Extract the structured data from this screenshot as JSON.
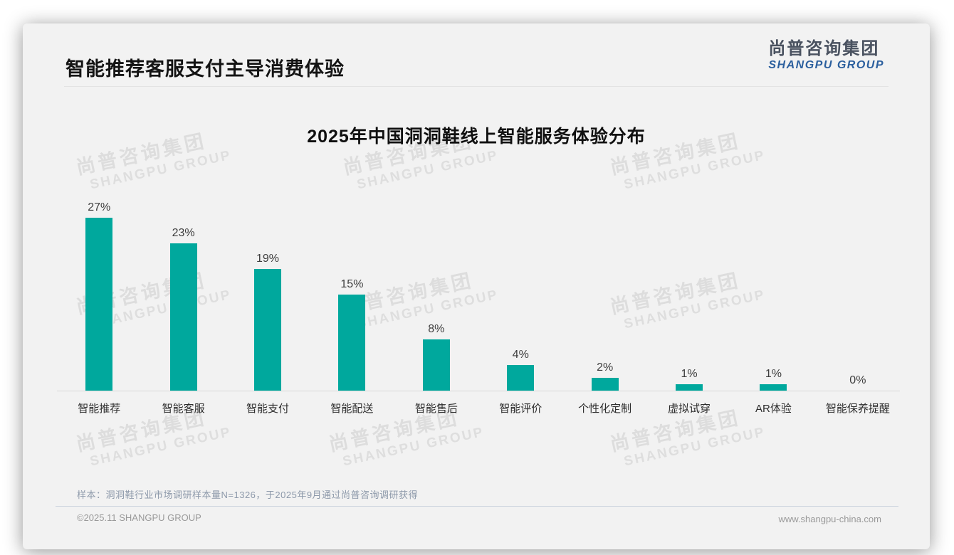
{
  "page": {
    "title": "智能推荐客服支付主导消费体验",
    "logo": {
      "zh": "尚普咨询集团",
      "en": "SHANGPU GROUP"
    },
    "watermark": {
      "zh": "尚普咨询集团",
      "en": "SHANGPU GROUP"
    },
    "note": "样本：洞洞鞋行业市场调研样本量N=1326，于2025年9月通过尚普咨询调研获得",
    "footer_left": "©2025.11 SHANGPU GROUP",
    "footer_right": "www.shangpu-china.com"
  },
  "colors": {
    "bar": "#00a89d",
    "logo_dark": "#4a5260",
    "logo_blue": "#2b5f9e",
    "card_bg": "#f2f2f2"
  },
  "chart_data": {
    "type": "bar",
    "title": "2025年中国洞洞鞋线上智能服务体验分布",
    "categories": [
      "智能推荐",
      "智能客服",
      "智能支付",
      "智能配送",
      "智能售后",
      "智能评价",
      "个性化定制",
      "虚拟试穿",
      "AR体验",
      "智能保养提醒"
    ],
    "values": [
      27,
      23,
      19,
      15,
      8,
      4,
      2,
      1,
      1,
      0
    ],
    "labels": [
      "27%",
      "23%",
      "19%",
      "15%",
      "8%",
      "4%",
      "2%",
      "1%",
      "1%",
      "0%"
    ],
    "unit": "%",
    "ylim": [
      0,
      30
    ],
    "grid": false,
    "legend": false,
    "xlabel": "",
    "ylabel": ""
  }
}
